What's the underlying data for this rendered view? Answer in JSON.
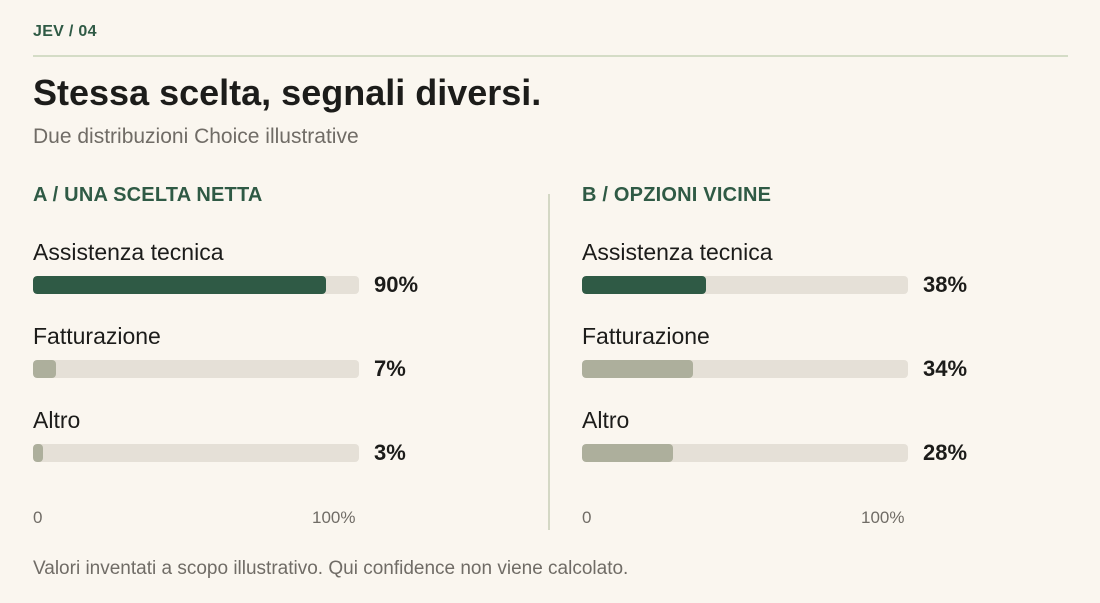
{
  "kicker": "JEV / 04",
  "title": "Stessa scelta, segnali diversi.",
  "subtitle": "Due distribuzioni Choice illustrative",
  "footnote": "Valori inventati a scopo illustrativo. Qui confidence non viene calcolato.",
  "colors": {
    "lead": "#2f5a45",
    "other": "#adaf9c",
    "track": "#e5e0d7",
    "background": "#faf6ef"
  },
  "chart_data": [
    {
      "type": "bar",
      "orientation": "horizontal",
      "title": "A / UNA SCELTA NETTA",
      "categories": [
        "Assistenza tecnica",
        "Fatturazione",
        "Altro"
      ],
      "values": [
        90,
        7,
        3
      ],
      "value_labels": [
        "90%",
        "7%",
        "3%"
      ],
      "xlim": [
        0,
        100
      ],
      "x_ticks": [
        "0",
        "100%"
      ],
      "grid": false
    },
    {
      "type": "bar",
      "orientation": "horizontal",
      "title": "B / OPZIONI VICINE",
      "categories": [
        "Assistenza tecnica",
        "Fatturazione",
        "Altro"
      ],
      "values": [
        38,
        34,
        28
      ],
      "value_labels": [
        "38%",
        "34%",
        "28%"
      ],
      "xlim": [
        0,
        100
      ],
      "x_ticks": [
        "0",
        "100%"
      ],
      "grid": false
    }
  ]
}
